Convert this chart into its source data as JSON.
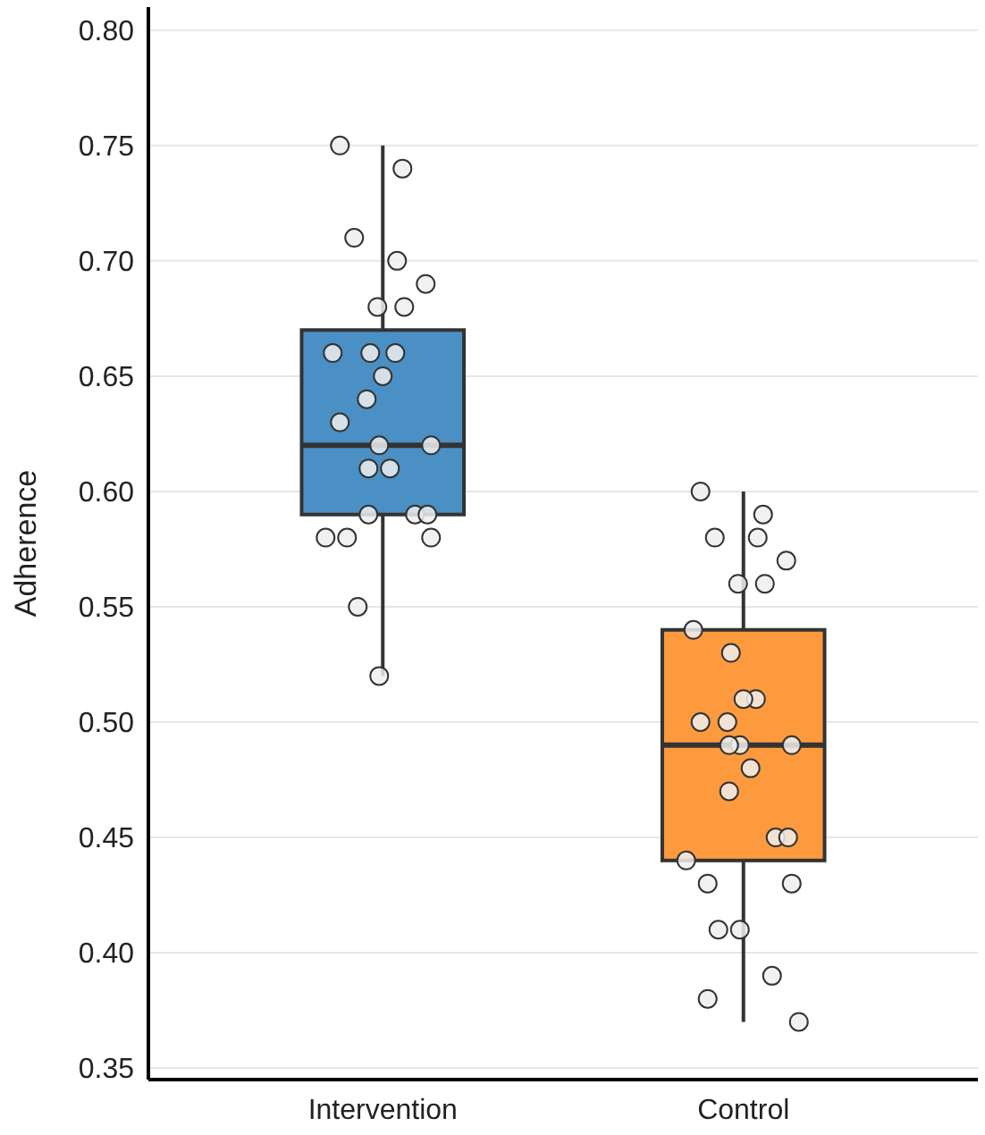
{
  "chart_data": {
    "type": "box",
    "ylabel": "Adherence",
    "categories": [
      "Intervention",
      "Control"
    ],
    "ylim": [
      0.345,
      0.81
    ],
    "yticks": [
      {
        "value": 0.35,
        "label": "0.35"
      },
      {
        "value": 0.4,
        "label": "0.40"
      },
      {
        "value": 0.45,
        "label": "0.45"
      },
      {
        "value": 0.5,
        "label": "0.50"
      },
      {
        "value": 0.55,
        "label": "0.55"
      },
      {
        "value": 0.6,
        "label": "0.60"
      },
      {
        "value": 0.65,
        "label": "0.65"
      },
      {
        "value": 0.7,
        "label": "0.70"
      },
      {
        "value": 0.75,
        "label": "0.75"
      },
      {
        "value": 0.8,
        "label": "0.80"
      }
    ],
    "grid": "y",
    "colors": [
      "#4a90c4",
      "#fd9a3d"
    ],
    "boxes": [
      {
        "low": 0.52,
        "q1": 0.59,
        "median": 0.62,
        "q3": 0.67,
        "high": 0.75
      },
      {
        "low": 0.37,
        "q1": 0.44,
        "median": 0.49,
        "q3": 0.54,
        "high": 0.6
      }
    ],
    "series": [
      {
        "type": "scatter",
        "color": "#eeeeee",
        "marker": "circle",
        "x": [
          "Intervention",
          "Intervention",
          "Intervention",
          "Intervention",
          "Intervention",
          "Intervention",
          "Intervention",
          "Intervention",
          "Intervention",
          "Intervention",
          "Intervention",
          "Intervention",
          "Intervention",
          "Intervention",
          "Intervention",
          "Intervention",
          "Intervention",
          "Intervention",
          "Intervention",
          "Intervention",
          "Intervention",
          "Intervention",
          "Intervention",
          "Intervention",
          "Intervention"
        ],
        "values": [
          0.75,
          0.74,
          0.71,
          0.7,
          0.69,
          0.68,
          0.68,
          0.66,
          0.66,
          0.66,
          0.65,
          0.64,
          0.63,
          0.62,
          0.62,
          0.61,
          0.61,
          0.59,
          0.59,
          0.59,
          0.58,
          0.58,
          0.58,
          0.55,
          0.52
        ]
      },
      {
        "type": "scatter",
        "color": "#eeeeee",
        "marker": "circle",
        "x": [
          "Control",
          "Control",
          "Control",
          "Control",
          "Control",
          "Control",
          "Control",
          "Control",
          "Control",
          "Control",
          "Control",
          "Control",
          "Control",
          "Control",
          "Control",
          "Control",
          "Control",
          "Control",
          "Control",
          "Control",
          "Control",
          "Control",
          "Control",
          "Control",
          "Control",
          "Control",
          "Control",
          "Control"
        ],
        "values": [
          0.6,
          0.59,
          0.58,
          0.58,
          0.57,
          0.56,
          0.56,
          0.54,
          0.53,
          0.51,
          0.51,
          0.5,
          0.5,
          0.49,
          0.49,
          0.49,
          0.48,
          0.47,
          0.45,
          0.45,
          0.44,
          0.43,
          0.43,
          0.41,
          0.41,
          0.39,
          0.38,
          0.37
        ]
      }
    ]
  }
}
